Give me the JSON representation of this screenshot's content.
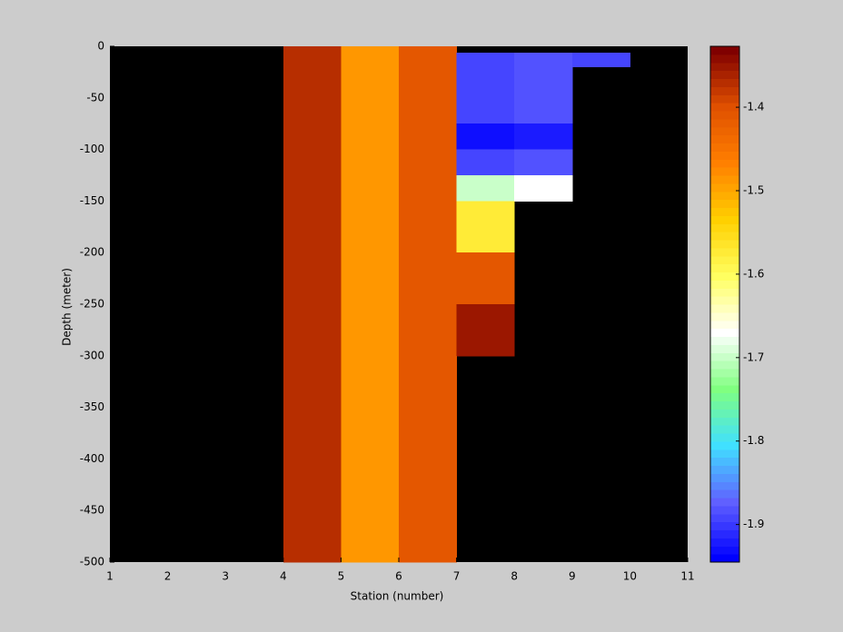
{
  "chart_data": {
    "type": "heatmap",
    "xlabel": "Station (number)",
    "ylabel": "Depth (meter)",
    "x": [
      1,
      2,
      3,
      4,
      5,
      6,
      7,
      8,
      9,
      10,
      11
    ],
    "y": [
      0,
      -6,
      -20,
      -75,
      -100,
      -125,
      -150,
      -200,
      -250,
      -300,
      -500
    ],
    "values": [
      [
        null,
        null,
        null,
        -1.37,
        -1.49,
        -1.41,
        null,
        null,
        null,
        null
      ],
      [
        null,
        null,
        null,
        -1.37,
        -1.49,
        -1.41,
        -1.89,
        -1.88,
        -1.89,
        null
      ],
      [
        null,
        null,
        null,
        -1.37,
        -1.49,
        -1.41,
        -1.89,
        -1.88,
        null,
        null
      ],
      [
        null,
        null,
        null,
        -1.37,
        -1.49,
        -1.41,
        -1.93,
        -1.92,
        null,
        null
      ],
      [
        null,
        null,
        null,
        -1.37,
        -1.49,
        -1.41,
        -1.89,
        -1.88,
        null,
        null
      ],
      [
        null,
        null,
        null,
        -1.37,
        -1.49,
        -1.41,
        -1.7,
        -1.67,
        null,
        null
      ],
      [
        null,
        null,
        null,
        -1.37,
        -1.49,
        -1.41,
        -1.57,
        null,
        null,
        null
      ],
      [
        null,
        null,
        null,
        -1.37,
        -1.49,
        -1.41,
        -1.41,
        null,
        null,
        null
      ],
      [
        null,
        null,
        null,
        -1.37,
        -1.49,
        -1.41,
        -1.35,
        null,
        null,
        null
      ],
      [
        null,
        null,
        null,
        -1.37,
        -1.49,
        -1.41,
        null,
        null,
        null,
        null
      ]
    ],
    "xlim": [
      1,
      11
    ],
    "xticks": [
      1,
      2,
      3,
      4,
      5,
      6,
      7,
      8,
      9,
      10,
      11
    ],
    "ylim": [
      -500,
      0
    ],
    "yticks": [
      0,
      -50,
      -100,
      -150,
      -200,
      -250,
      -300,
      -350,
      -400,
      -450,
      -500
    ],
    "clim": [
      -1.945,
      -1.327
    ],
    "cticks": [
      -1.9,
      -1.8,
      -1.7,
      -1.6,
      -1.5,
      -1.4
    ],
    "colormap": [
      "#0000ff",
      "#6060ff",
      "#40e0ff",
      "#80ff80",
      "#ffffff",
      "#ffff60",
      "#ffd000",
      "#ff8000",
      "#e05000",
      "#800000"
    ],
    "colormap_levels": 64,
    "background": "#000000"
  }
}
